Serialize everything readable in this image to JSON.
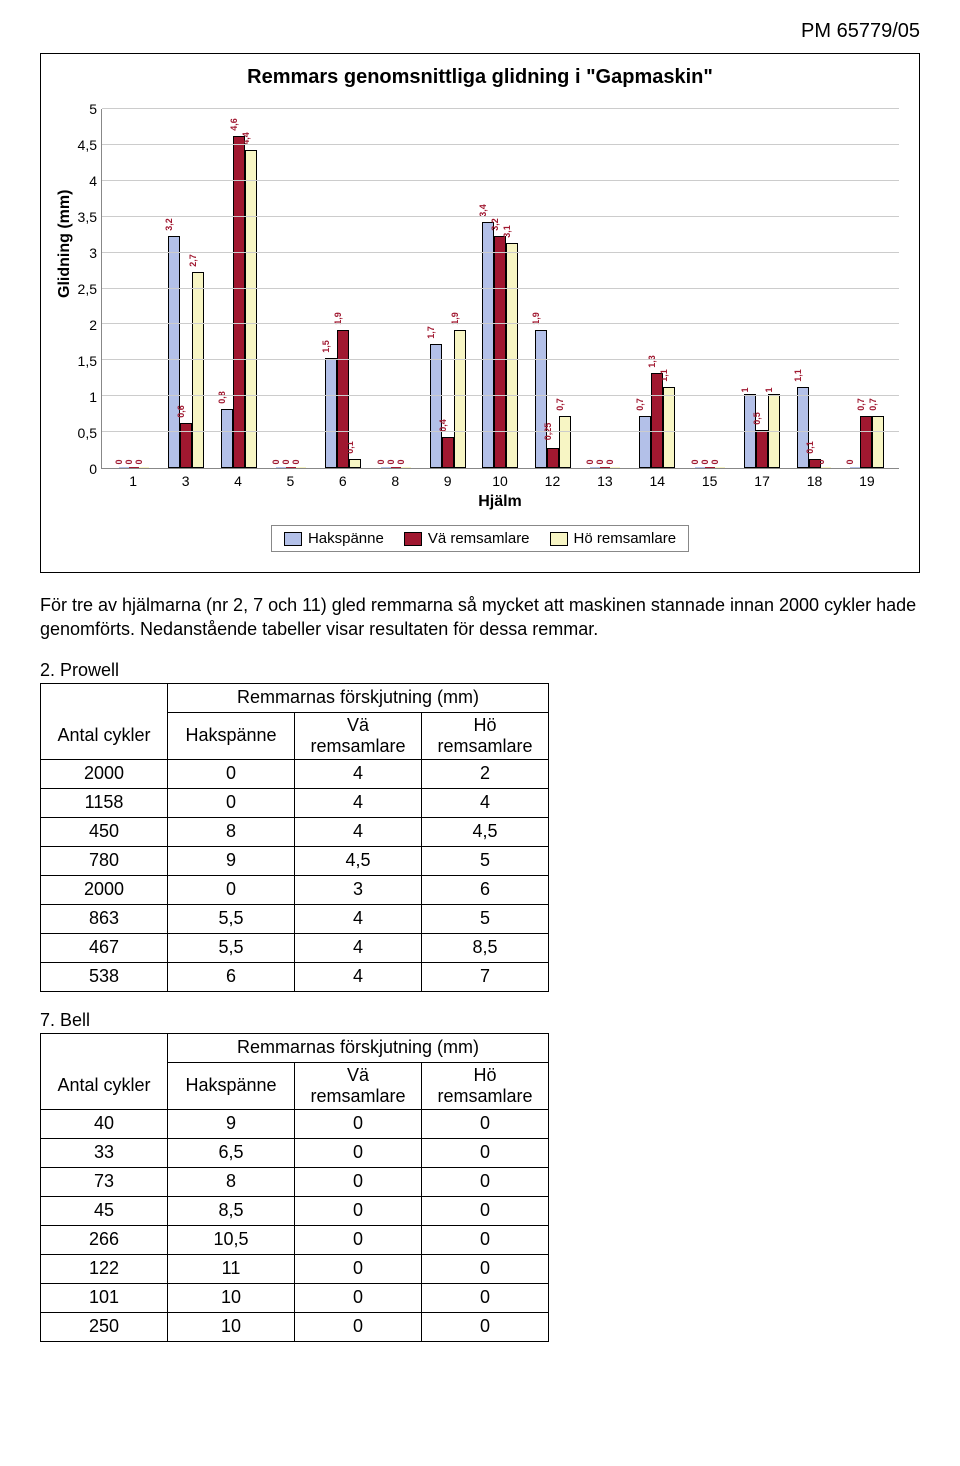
{
  "header": "PM 65779/05",
  "chart": {
    "type": "bar",
    "title": "Remmars genomsnittliga glidning i \"Gapmaskin\"",
    "ylabel": "Glidning (mm)",
    "xlabel": "Hjälm",
    "ylim": [
      0,
      5
    ],
    "ytick_step": 0.5,
    "yticks": [
      "0",
      "0,5",
      "1",
      "1,5",
      "2",
      "2,5",
      "3",
      "3,5",
      "4",
      "4,5",
      "5"
    ],
    "categories": [
      "1",
      "3",
      "4",
      "5",
      "6",
      "8",
      "9",
      "10",
      "12",
      "13",
      "14",
      "15",
      "17",
      "18",
      "19"
    ],
    "series": [
      {
        "name": "Hakspänne",
        "label": "Hakspänne",
        "color": "#b3c0e8",
        "border": "#000"
      },
      {
        "name": "Vä remsamlare",
        "label": "Vä remsamlare",
        "color": "#a01830",
        "border": "#000"
      },
      {
        "name": "Hö remsamlare",
        "label": "Hö remsamlare",
        "color": "#f7f5c4",
        "border": "#000"
      }
    ],
    "values": [
      [
        0,
        0,
        0
      ],
      [
        3.2,
        0.6,
        2.7
      ],
      [
        0.8,
        4.6,
        4.4
      ],
      [
        0,
        0,
        0
      ],
      [
        1.5,
        1.9,
        0.1
      ],
      [
        0,
        0,
        0
      ],
      [
        1.7,
        0.4,
        1.9
      ],
      [
        3.4,
        3.2,
        3.1
      ],
      [
        1.9,
        0.25,
        0.7
      ],
      [
        0,
        0,
        0
      ],
      [
        0.7,
        1.3,
        1.1
      ],
      [
        0,
        0,
        0
      ],
      [
        1,
        0.5,
        1
      ],
      [
        1.1,
        0.1,
        0
      ],
      [
        0,
        0.7,
        0.7
      ]
    ],
    "value_labels": [
      [
        "0",
        "0",
        "0"
      ],
      [
        "3,2",
        "0,6",
        "2,7"
      ],
      [
        "0,8",
        "4,6",
        "4,4"
      ],
      [
        "0",
        "0",
        "0"
      ],
      [
        "1,5",
        "1,9",
        "0,1"
      ],
      [
        "0",
        "0",
        "0"
      ],
      [
        "1,7",
        "0,4",
        "1,9"
      ],
      [
        "3,4",
        "3,2",
        "3,1"
      ],
      [
        "1,9",
        "0,25",
        "0,7"
      ],
      [
        "0",
        "0",
        "0"
      ],
      [
        "0,7",
        "1,3",
        "1,1"
      ],
      [
        "0",
        "0",
        "0"
      ],
      [
        "1",
        "0,5",
        "1"
      ],
      [
        "1,1",
        "0,1",
        "0"
      ],
      [
        "0",
        "0,7",
        "0,7"
      ]
    ],
    "grid_color": "#cccccc",
    "axis_color": "#888888",
    "title_fontsize": 20,
    "label_fontsize": 16,
    "tick_fontsize": 14,
    "bar_label_fontsize": 9,
    "bar_label_color": "#a01830"
  },
  "paragraph": "För tre av hjälmarna (nr 2, 7 och 11) gled remmarna så mycket att maskinen stannade innan 2000 cykler hade genomförts. Nedanstående tabeller visar resultaten för dessa remmar.",
  "table1": {
    "title": "2. Prowell",
    "head_merged": "Remmarnas förskjutning (mm)",
    "cols": [
      "Antal cykler",
      "Hakspänne",
      "Vä remsamlare",
      "Hö remsamlare"
    ],
    "rows": [
      [
        "2000",
        "0",
        "4",
        "2"
      ],
      [
        "1158",
        "0",
        "4",
        "4"
      ],
      [
        "450",
        "8",
        "4",
        "4,5"
      ],
      [
        "780",
        "9",
        "4,5",
        "5"
      ],
      [
        "2000",
        "0",
        "3",
        "6"
      ],
      [
        "863",
        "5,5",
        "4",
        "5"
      ],
      [
        "467",
        "5,5",
        "4",
        "8,5"
      ],
      [
        "538",
        "6",
        "4",
        "7"
      ]
    ]
  },
  "table2": {
    "title": "7. Bell",
    "head_merged": "Remmarnas förskjutning (mm)",
    "cols": [
      "Antal cykler",
      "Hakspänne",
      "Vä remsamlare",
      "Hö remsamlare"
    ],
    "rows": [
      [
        "40",
        "9",
        "0",
        "0"
      ],
      [
        "33",
        "6,5",
        "0",
        "0"
      ],
      [
        "73",
        "8",
        "0",
        "0"
      ],
      [
        "45",
        "8,5",
        "0",
        "0"
      ],
      [
        "266",
        "10,5",
        "0",
        "0"
      ],
      [
        "122",
        "11",
        "0",
        "0"
      ],
      [
        "101",
        "10",
        "0",
        "0"
      ],
      [
        "250",
        "10",
        "0",
        "0"
      ]
    ]
  }
}
